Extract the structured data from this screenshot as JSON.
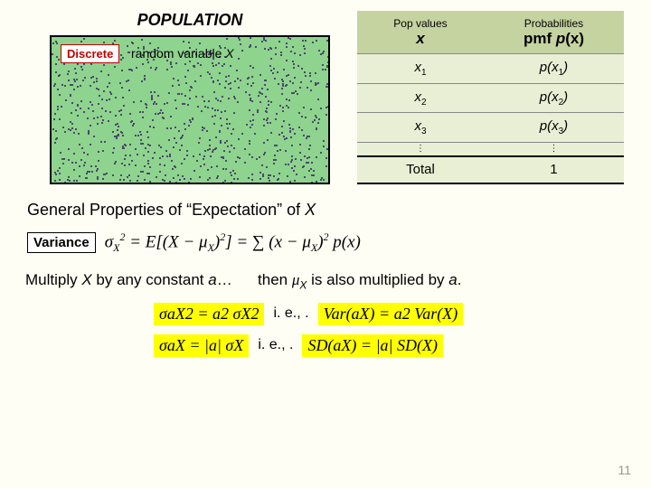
{
  "population": {
    "title": "POPULATION",
    "discrete_label": "Discrete",
    "rv_label_prefix": "random variable ",
    "rv_label_var": "X",
    "box_bg": "#8ed38e",
    "dot_color": "#4a4a6a",
    "dot_count": 900
  },
  "table": {
    "headers": {
      "col1_small": "Pop values",
      "col1_big": "x",
      "col2_small": "Probabilities",
      "col2_big_pre": "pmf ",
      "col2_big_fn": "p",
      "col2_big_arg": "(x)"
    },
    "rows": [
      {
        "x": "x",
        "xi": "1",
        "p": "p",
        "pi": "1"
      },
      {
        "x": "x",
        "xi": "2",
        "p": "p",
        "pi": "2"
      },
      {
        "x": "x",
        "xi": "3",
        "p": "p",
        "pi": "3"
      }
    ],
    "dots": "⋮",
    "total_label": "Total",
    "total_value": "1",
    "header_bg": "#c5d3a0",
    "row_bg": "#e8efd5"
  },
  "section_title": "General Properties of \"Expectation\" of X",
  "variance": {
    "label": "Variance",
    "formula_html": "σ<span class='sub2'>X</span><span class='sup2'>2</span> = E[(X − μ<span class='sub2'>X</span>)<span class='sup2'>2</span>] = ∑ (x − μ<span class='sub2'>X</span>)<span class='sup2'>2</span> p(x)"
  },
  "multiply_line": {
    "pre": "Multiply ",
    "X": "X",
    "mid": " by any constant ",
    "a": "a",
    "dots": "…",
    "then": "then ",
    "mu": "μ",
    "muX": "X",
    "tail": " is also multiplied by ",
    "a2": "a",
    "period": "."
  },
  "ie1": {
    "ie": "i. e., .",
    "left_html": "σ<span class='sub2'>aX</span><span class='sup2'>2</span> = a<span class='sup2'>2</span> σ<span class='sub2'>X</span><span class='sup2'>2</span>",
    "right_html": "Var(aX) = a<span class='sup2'>2</span> Var(X)"
  },
  "ie2": {
    "ie": "i. e., .",
    "left_html": "σ<span class='sub2'>aX</span> = |a| σ<span class='sub2'>X</span>",
    "right_html": "SD(aX) = |a| SD(X)"
  },
  "page_number": "11"
}
